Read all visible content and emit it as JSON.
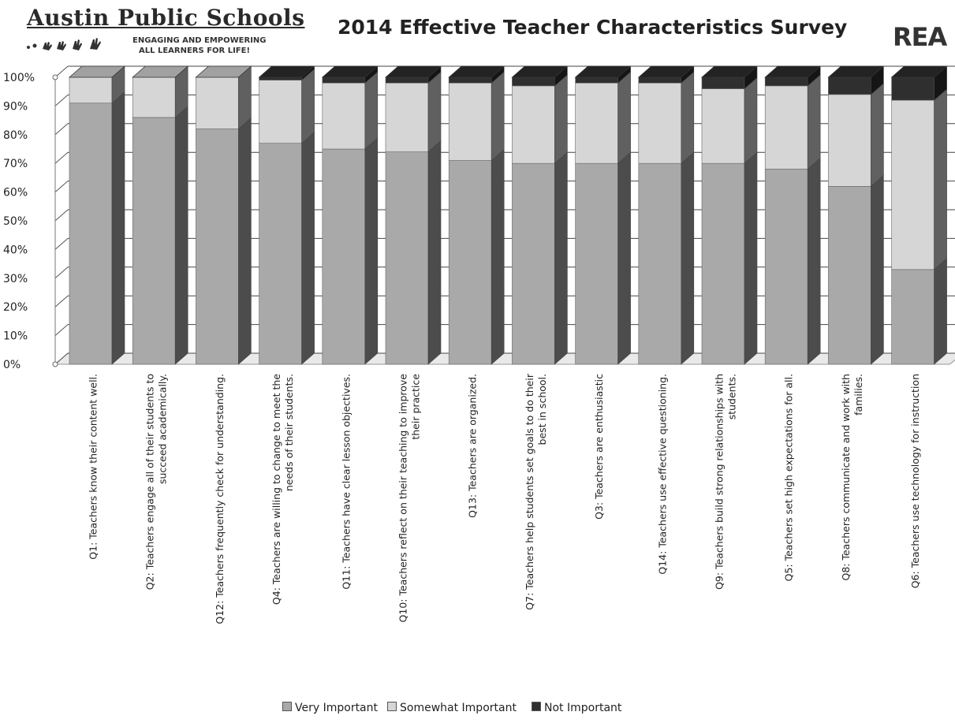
{
  "header": {
    "logo_name": "Austin Public Schools",
    "logo_tagline_1": "ENGAGING AND EMPOWERING",
    "logo_tagline_2": "ALL LEARNERS FOR LIFE!",
    "logo_icon": "handprints-icon",
    "title": "2014 Effective Teacher Characteristics Survey",
    "rea_logo_text": "REA",
    "rea_icon": "rea-logo-icon"
  },
  "colors": {
    "very_important": "#a9a9a9",
    "somewhat_important": "#d6d6d6",
    "not_important": "#2f2f2f"
  },
  "chart_data": {
    "type": "bar",
    "stacked": true,
    "percent": true,
    "three_d": true,
    "title": "2014 Effective Teacher Characteristics Survey",
    "ylim": [
      0,
      100
    ],
    "yticks": [
      "0%",
      "10%",
      "20%",
      "30%",
      "40%",
      "50%",
      "60%",
      "70%",
      "80%",
      "90%",
      "100%"
    ],
    "grid": true,
    "legend": "bottom",
    "categories": [
      "Q1:  Teachers know their content well.",
      "Q2:  Teachers engage all of their students to succeed academically.",
      "Q12:  Teachers frequently check for understanding.",
      "Q4:  Teachers are willing to change to meet the needs of their students.",
      "Q11:  Teachers have clear lesson objectives.",
      "Q10:  Teachers reflect on their teaching to improve their practice",
      "Q13:  Teachers are organized.",
      "Q7:  Teachers help students set goals to do their best in school.",
      "Q3:  Teachers are enthusiastic",
      "Q14:  Teachers use effective questioning.",
      "Q9:  Teachers build strong relationships with students.",
      "Q5:  Teachers set high expectations for all.",
      "Q8:  Teachers communicate and work with families.",
      "Q6:  Teachers use technology for instruction"
    ],
    "label_lines": [
      [
        "Q1:  Teachers know their content well."
      ],
      [
        "Q2:  Teachers engage all of their students to",
        "succeed academically."
      ],
      [
        "Q12:  Teachers frequently check for understanding."
      ],
      [
        "Q4:  Teachers are willing to change to meet the",
        "needs of their students."
      ],
      [
        "Q11:  Teachers have clear lesson objectives."
      ],
      [
        "Q10:  Teachers reflect on their teaching to improve",
        "their practice"
      ],
      [
        "Q13:  Teachers are organized."
      ],
      [
        "Q7:  Teachers help students set goals to do their",
        "best in school."
      ],
      [
        "Q3:  Teachers are enthusiastic"
      ],
      [
        "Q14:  Teachers use effective questioning."
      ],
      [
        "Q9:  Teachers build strong relationships with",
        "students."
      ],
      [
        "Q5:  Teachers set high expectations for all."
      ],
      [
        "Q8:  Teachers communicate and work with",
        "families."
      ],
      [
        "Q6:  Teachers use technology for instruction"
      ]
    ],
    "series": [
      {
        "name": "Very Important",
        "values": [
          91,
          86,
          82,
          77,
          75,
          74,
          71,
          70,
          70,
          70,
          70,
          68,
          62,
          33
        ]
      },
      {
        "name": "Somewhat Important",
        "values": [
          9,
          14,
          18,
          22,
          23,
          24,
          27,
          27,
          28,
          28,
          26,
          29,
          32,
          59
        ]
      },
      {
        "name": "Not Important",
        "values": [
          0,
          0,
          0,
          1,
          2,
          2,
          2,
          3,
          2,
          2,
          4,
          3,
          6,
          8
        ]
      }
    ]
  }
}
